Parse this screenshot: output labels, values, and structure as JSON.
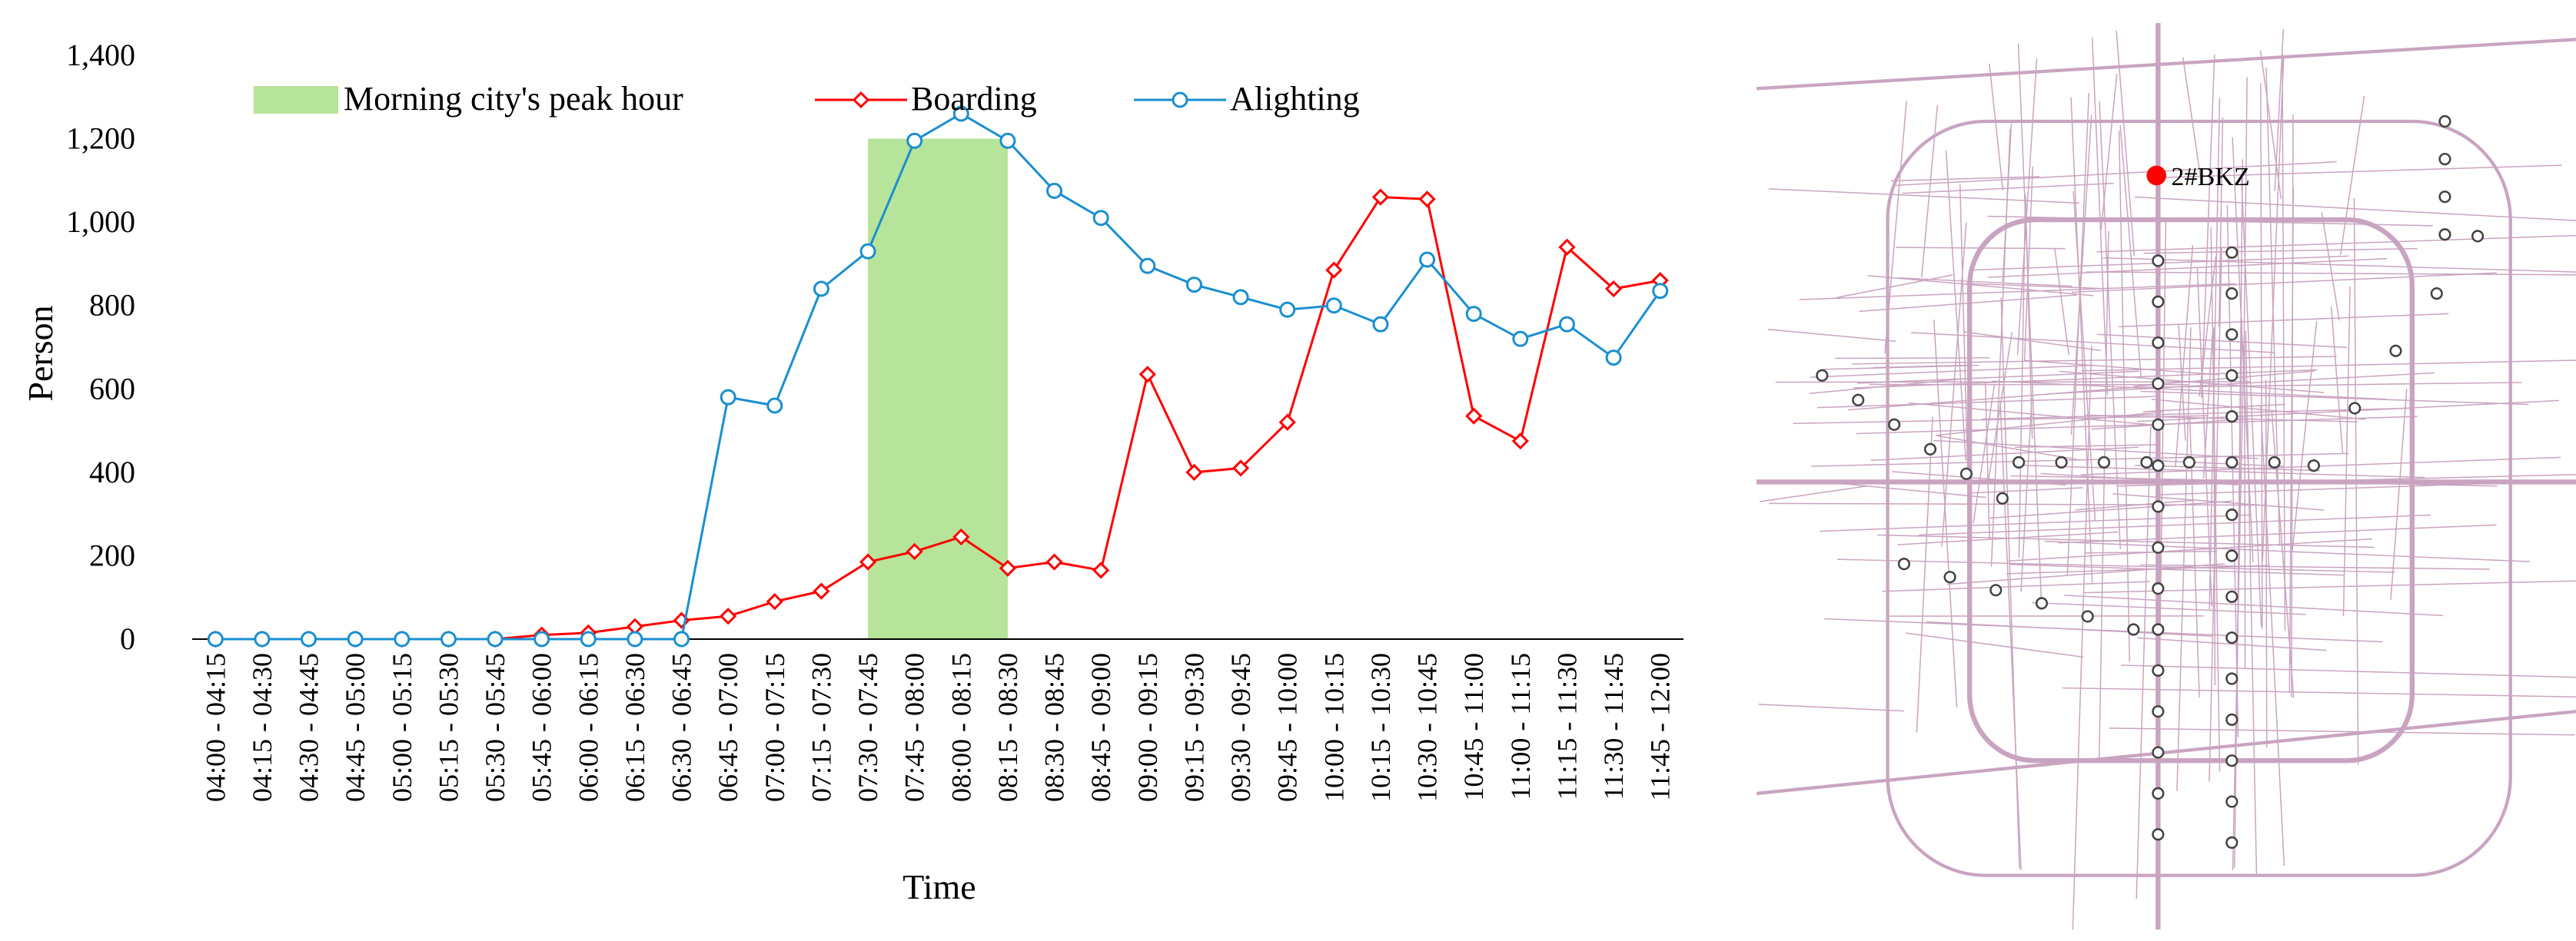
{
  "chart_data": {
    "type": "line",
    "title": "",
    "xlabel": "Time",
    "ylabel": "Person",
    "ylim": [
      0,
      1400
    ],
    "yticks": [
      0,
      200,
      400,
      600,
      800,
      1000,
      1200,
      1400
    ],
    "ytick_labels": [
      "0",
      "200",
      "400",
      "600",
      "800",
      "1,000",
      "1,200",
      "1,400"
    ],
    "grid": false,
    "legend_position": "top",
    "categories": [
      "04:00 - 04:15",
      "04:15 - 04:30",
      "04:30 - 04:45",
      "04:45 - 05:00",
      "05:00 - 05:15",
      "05:15 - 05:30",
      "05:30 - 05:45",
      "05:45 - 06:00",
      "06:00 - 06:15",
      "06:15 - 06:30",
      "06:30 - 06:45",
      "06:45 - 07:00",
      "07:00 - 07:15",
      "07:15 - 07:30",
      "07:30 - 07:45",
      "07:45 - 08:00",
      "08:00 - 08:15",
      "08:15 - 08:30",
      "08:30 - 08:45",
      "08:45 - 09:00",
      "09:00 - 09:15",
      "09:15 - 09:30",
      "09:30 - 09:45",
      "09:45 - 10:00",
      "10:00 - 10:15",
      "10:15 - 10:30",
      "10:30 - 10:45",
      "10:45 - 11:00",
      "11:00 - 11:15",
      "11:15 - 11:30",
      "11:30 - 11:45",
      "11:45 - 12:00"
    ],
    "peak_band": {
      "name": "Morning city's peak hour",
      "from_category": "07:30 - 07:45",
      "to_category": "08:15 - 08:30",
      "color": "#b6e49a"
    },
    "series": [
      {
        "name": "Boarding",
        "color": "#ff0000",
        "marker": "diamond",
        "values": [
          0,
          0,
          0,
          0,
          0,
          0,
          0,
          10,
          15,
          30,
          45,
          55,
          90,
          115,
          185,
          210,
          245,
          170,
          185,
          165,
          635,
          400,
          410,
          520,
          885,
          1060,
          1055,
          535,
          475,
          940,
          840,
          860
        ]
      },
      {
        "name": "Alighting",
        "color": "#1a8fd0",
        "marker": "circle",
        "values": [
          0,
          0,
          0,
          0,
          0,
          0,
          0,
          0,
          0,
          0,
          0,
          580,
          560,
          840,
          930,
          1195,
          1260,
          1195,
          1075,
          1010,
          895,
          850,
          820,
          790,
          800,
          755,
          910,
          780,
          720,
          755,
          675,
          835
        ]
      }
    ]
  },
  "map": {
    "station_label": "2#BKZ",
    "highlight_color": "#ff0000",
    "road_color": "#c9a4c0"
  }
}
